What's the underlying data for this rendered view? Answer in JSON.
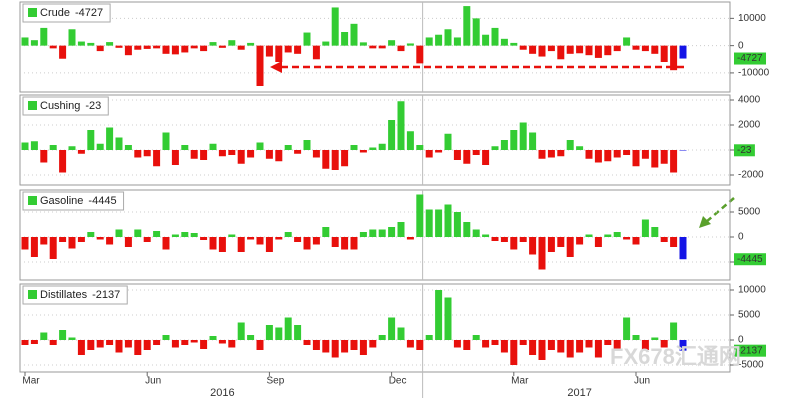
{
  "chart_data": [
    {
      "type": "bar",
      "series": [
        {
          "name": "Crude",
          "values": [
            3000,
            2000,
            6500,
            -1000,
            -4800,
            6000,
            1500,
            1000,
            -2000,
            1300,
            -800,
            -3500,
            -1500,
            -1200,
            -1000,
            -3000,
            -3200,
            -2500,
            -1000,
            -2000,
            1300,
            -800,
            2000,
            -1500,
            1000,
            -14800,
            -4000,
            -6000,
            -2500,
            -3000,
            4800,
            -5000,
            1500,
            14000,
            5000,
            8000,
            1200,
            -1000,
            -1000,
            2000,
            -2000,
            800,
            -6500,
            3000,
            4000,
            6000,
            3000,
            14500,
            10000,
            4000,
            6500,
            2500,
            1000,
            -1500,
            -3000,
            -4000,
            -2000,
            -5000,
            -3000,
            -2800,
            -3500,
            -4500,
            -3500,
            -2000,
            3000,
            -1500,
            -2000,
            -3000,
            -6000,
            -9000,
            -4727
          ]
        }
      ],
      "color": "#33cc33",
      "negative_color": "#e8100c",
      "last_color": "#1414e6",
      "ylim": [
        -17000,
        16000
      ],
      "yticks": [
        10000,
        0,
        -10000
      ],
      "grid": true
    },
    {
      "type": "bar",
      "series": [
        {
          "name": "Cushing",
          "values": [
            600,
            700,
            -1000,
            400,
            -1800,
            300,
            -300,
            1600,
            500,
            1800,
            1000,
            400,
            -600,
            -500,
            -1300,
            1400,
            -1200,
            400,
            -700,
            -800,
            500,
            -500,
            -400,
            -1100,
            -600,
            600,
            -700,
            -900,
            400,
            -300,
            800,
            -600,
            -1500,
            -1600,
            -1300,
            400,
            -200,
            200,
            500,
            2400,
            3900,
            1500,
            400,
            -600,
            -200,
            1300,
            -800,
            -1100,
            -400,
            -1200,
            300,
            800,
            1600,
            2200,
            1400,
            -700,
            -600,
            -500,
            800,
            300,
            -700,
            -1000,
            -900,
            -600,
            -400,
            -1300,
            -700,
            -1400,
            -1100,
            -1800,
            -23
          ]
        }
      ],
      "color": "#33cc33",
      "negative_color": "#e8100c",
      "last_color": "#1414e6",
      "ylim": [
        -2800,
        4400
      ],
      "yticks": [
        4000,
        2000,
        0,
        -2000
      ],
      "grid": true
    },
    {
      "type": "bar",
      "series": [
        {
          "name": "Gasoline",
          "values": [
            -2500,
            -4000,
            -1500,
            -4400,
            -1000,
            -2300,
            -1000,
            1000,
            -500,
            -1500,
            1500,
            -2000,
            1500,
            -1000,
            1200,
            -2500,
            500,
            1000,
            800,
            -600,
            -2500,
            -3000,
            500,
            -3000,
            -500,
            -1500,
            -3000,
            -500,
            1000,
            -1000,
            -2500,
            -1500,
            2000,
            -2000,
            -2500,
            -2500,
            1000,
            1500,
            1500,
            2000,
            3000,
            -500,
            8500,
            5500,
            5500,
            6500,
            5000,
            3000,
            1500,
            500,
            -800,
            -1000,
            -2500,
            -1000,
            -3500,
            -6500,
            -3000,
            -2000,
            -4000,
            -1500,
            500,
            -2000,
            500,
            1000,
            -500,
            -1500,
            3500,
            2000,
            -1000,
            -2000,
            -4445
          ]
        }
      ],
      "color": "#33cc33",
      "negative_color": "#e8100c",
      "last_color": "#1414e6",
      "ylim": [
        -8600,
        9400
      ],
      "yticks": [
        5000,
        0,
        -5000
      ],
      "grid": true
    },
    {
      "type": "bar",
      "series": [
        {
          "name": "Distillates",
          "values": [
            -1000,
            -800,
            1500,
            -1000,
            2000,
            500,
            -3000,
            -2000,
            -1500,
            -1000,
            -2500,
            -1500,
            -3000,
            -2000,
            -1000,
            1000,
            -1500,
            -1000,
            -500,
            -1800,
            800,
            -700,
            -1500,
            3500,
            1000,
            -2000,
            3000,
            2500,
            4500,
            3000,
            -1000,
            -2000,
            -2500,
            -3500,
            -2500,
            -2000,
            -3000,
            -1500,
            1000,
            4500,
            2500,
            -1500,
            -2000,
            1000,
            10000,
            8500,
            -1500,
            -2000,
            1000,
            -1500,
            -1000,
            -2500,
            -5000,
            -1000,
            -3000,
            -4000,
            -2000,
            -2500,
            -3500,
            -2500,
            -1500,
            -3500,
            -1000,
            -2000,
            4500,
            1000,
            -2000,
            500,
            -1500,
            3500,
            -2137
          ]
        }
      ],
      "color": "#33cc33",
      "negative_color": "#e8100c",
      "last_color": "#1414e6",
      "ylim": [
        -6400,
        11200
      ],
      "yticks": [
        10000,
        5000,
        0,
        -5000
      ],
      "grid": true,
      "categories": [
        "Mar",
        null,
        null,
        null,
        null,
        null,
        null,
        null,
        null,
        null,
        null,
        null,
        null,
        "Jun",
        null,
        null,
        null,
        null,
        null,
        null,
        null,
        null,
        null,
        null,
        null,
        null,
        "Sep",
        null,
        null,
        null,
        null,
        null,
        null,
        null,
        null,
        null,
        null,
        null,
        null,
        "Dec",
        null,
        null,
        null,
        null,
        null,
        null,
        null,
        null,
        null,
        null,
        null,
        null,
        "Mar",
        null,
        null,
        null,
        null,
        null,
        null,
        null,
        null,
        null,
        null,
        null,
        null,
        "Jun",
        null,
        null,
        null,
        null,
        null
      ],
      "x_years": [
        "2016",
        "2017"
      ]
    }
  ],
  "watermark": "FX678汇通网"
}
